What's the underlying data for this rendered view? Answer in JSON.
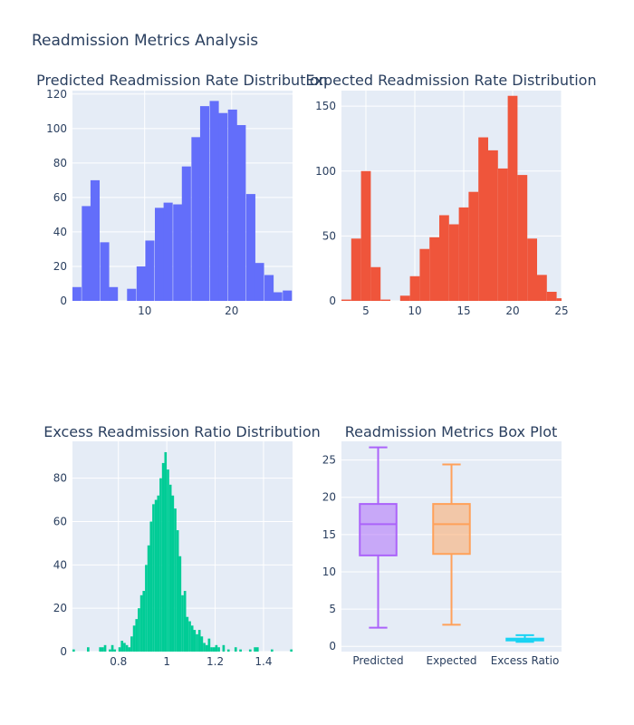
{
  "title": "Readmission Metrics Analysis",
  "colors": {
    "plot_bg": "#e5ecf6",
    "grid": "#ffffff",
    "text": "#2a3f5f",
    "predicted": "#636efa",
    "expected": "#ef553b",
    "excess": "#00cc96",
    "box_predicted": "#ab63fa",
    "box_expected": "#ffa15a",
    "box_excess": "#19d3f3"
  },
  "chart_data": [
    {
      "type": "bar",
      "subtitle": "Predicted Readmission Rate Distribution",
      "xlim": [
        1.7,
        27.0
      ],
      "ylim": [
        0,
        122
      ],
      "xticks": [
        10,
        20
      ],
      "yticks": [
        0,
        20,
        40,
        60,
        80,
        100,
        120
      ],
      "bin_width": 1.05,
      "bins": [
        {
          "x": 2.2,
          "y": 8
        },
        {
          "x": 3.3,
          "y": 55
        },
        {
          "x": 4.3,
          "y": 70
        },
        {
          "x": 5.4,
          "y": 34
        },
        {
          "x": 6.4,
          "y": 8
        },
        {
          "x": 8.5,
          "y": 7
        },
        {
          "x": 9.6,
          "y": 20
        },
        {
          "x": 10.6,
          "y": 35
        },
        {
          "x": 11.7,
          "y": 54
        },
        {
          "x": 12.7,
          "y": 57
        },
        {
          "x": 13.8,
          "y": 56
        },
        {
          "x": 14.8,
          "y": 78
        },
        {
          "x": 15.9,
          "y": 95
        },
        {
          "x": 16.9,
          "y": 113
        },
        {
          "x": 18.0,
          "y": 116
        },
        {
          "x": 19.0,
          "y": 109
        },
        {
          "x": 20.1,
          "y": 111
        },
        {
          "x": 21.1,
          "y": 102
        },
        {
          "x": 22.2,
          "y": 62
        },
        {
          "x": 23.2,
          "y": 22
        },
        {
          "x": 24.3,
          "y": 15
        },
        {
          "x": 25.3,
          "y": 5
        },
        {
          "x": 26.4,
          "y": 6
        }
      ]
    },
    {
      "type": "bar",
      "subtitle": "Expected Readmission Rate Distribution",
      "xlim": [
        2.5,
        25.0
      ],
      "ylim": [
        0,
        162
      ],
      "xticks": [
        5,
        10,
        15,
        20,
        25
      ],
      "yticks": [
        0,
        50,
        100,
        150
      ],
      "bin_width": 1.0,
      "bins": [
        {
          "x": 3.0,
          "y": 1
        },
        {
          "x": 4.0,
          "y": 48
        },
        {
          "x": 5.0,
          "y": 100
        },
        {
          "x": 6.0,
          "y": 26
        },
        {
          "x": 7.0,
          "y": 1
        },
        {
          "x": 9.0,
          "y": 4
        },
        {
          "x": 10.0,
          "y": 19
        },
        {
          "x": 11.0,
          "y": 40
        },
        {
          "x": 12.0,
          "y": 49
        },
        {
          "x": 13.0,
          "y": 66
        },
        {
          "x": 14.0,
          "y": 59
        },
        {
          "x": 15.0,
          "y": 72
        },
        {
          "x": 16.0,
          "y": 84
        },
        {
          "x": 17.0,
          "y": 126
        },
        {
          "x": 18.0,
          "y": 116
        },
        {
          "x": 19.0,
          "y": 102
        },
        {
          "x": 20.0,
          "y": 158
        },
        {
          "x": 21.0,
          "y": 97
        },
        {
          "x": 22.0,
          "y": 48
        },
        {
          "x": 23.0,
          "y": 20
        },
        {
          "x": 24.0,
          "y": 7
        },
        {
          "x": 25.0,
          "y": 2
        }
      ]
    },
    {
      "type": "bar",
      "subtitle": "Excess Readmission Ratio Distribution",
      "xlim": [
        0.61,
        1.52
      ],
      "ylim": [
        0,
        97
      ],
      "xticks": [
        0.8,
        1,
        1.2,
        1.4
      ],
      "yticks": [
        0,
        20,
        40,
        60,
        80
      ],
      "bin_width": 0.01,
      "bins": [
        {
          "x": 0.615,
          "y": 1
        },
        {
          "x": 0.675,
          "y": 2
        },
        {
          "x": 0.725,
          "y": 2
        },
        {
          "x": 0.735,
          "y": 2
        },
        {
          "x": 0.745,
          "y": 3
        },
        {
          "x": 0.765,
          "y": 1
        },
        {
          "x": 0.775,
          "y": 3
        },
        {
          "x": 0.785,
          "y": 1
        },
        {
          "x": 0.805,
          "y": 2
        },
        {
          "x": 0.815,
          "y": 5
        },
        {
          "x": 0.825,
          "y": 4
        },
        {
          "x": 0.835,
          "y": 3
        },
        {
          "x": 0.845,
          "y": 2
        },
        {
          "x": 0.855,
          "y": 7
        },
        {
          "x": 0.865,
          "y": 12
        },
        {
          "x": 0.875,
          "y": 15
        },
        {
          "x": 0.885,
          "y": 20
        },
        {
          "x": 0.895,
          "y": 26
        },
        {
          "x": 0.905,
          "y": 28
        },
        {
          "x": 0.915,
          "y": 40
        },
        {
          "x": 0.925,
          "y": 49
        },
        {
          "x": 0.935,
          "y": 60
        },
        {
          "x": 0.945,
          "y": 68
        },
        {
          "x": 0.955,
          "y": 70
        },
        {
          "x": 0.965,
          "y": 72
        },
        {
          "x": 0.975,
          "y": 80
        },
        {
          "x": 0.985,
          "y": 87
        },
        {
          "x": 0.995,
          "y": 92
        },
        {
          "x": 1.005,
          "y": 84
        },
        {
          "x": 1.015,
          "y": 77
        },
        {
          "x": 1.025,
          "y": 72
        },
        {
          "x": 1.035,
          "y": 66
        },
        {
          "x": 1.045,
          "y": 56
        },
        {
          "x": 1.055,
          "y": 44
        },
        {
          "x": 1.065,
          "y": 26
        },
        {
          "x": 1.075,
          "y": 28
        },
        {
          "x": 1.085,
          "y": 16
        },
        {
          "x": 1.095,
          "y": 14
        },
        {
          "x": 1.105,
          "y": 12
        },
        {
          "x": 1.115,
          "y": 10
        },
        {
          "x": 1.125,
          "y": 8
        },
        {
          "x": 1.135,
          "y": 10
        },
        {
          "x": 1.145,
          "y": 7
        },
        {
          "x": 1.155,
          "y": 4
        },
        {
          "x": 1.165,
          "y": 3
        },
        {
          "x": 1.175,
          "y": 6
        },
        {
          "x": 1.185,
          "y": 2
        },
        {
          "x": 1.195,
          "y": 2
        },
        {
          "x": 1.205,
          "y": 3
        },
        {
          "x": 1.215,
          "y": 2
        },
        {
          "x": 1.235,
          "y": 3
        },
        {
          "x": 1.255,
          "y": 1
        },
        {
          "x": 1.285,
          "y": 2
        },
        {
          "x": 1.305,
          "y": 1
        },
        {
          "x": 1.345,
          "y": 1
        },
        {
          "x": 1.365,
          "y": 2
        },
        {
          "x": 1.375,
          "y": 2
        },
        {
          "x": 1.435,
          "y": 1
        },
        {
          "x": 1.515,
          "y": 1
        }
      ]
    },
    {
      "type": "box",
      "subtitle": "Readmission Metrics Box Plot",
      "ylim": [
        -0.7,
        27.5
      ],
      "yticks": [
        0,
        5,
        10,
        15,
        20,
        25
      ],
      "categories": [
        "Predicted",
        "Expected",
        "Excess Ratio"
      ],
      "boxes": [
        {
          "name": "Predicted",
          "min": 2.5,
          "q1": 12.2,
          "median": 16.4,
          "q3": 19.1,
          "max": 26.7
        },
        {
          "name": "Expected",
          "min": 2.9,
          "q1": 12.4,
          "median": 16.4,
          "q3": 19.1,
          "max": 24.4
        },
        {
          "name": "Excess Ratio",
          "min": 0.6,
          "q1": 0.95,
          "median": 1.0,
          "q3": 1.04,
          "max": 1.5
        }
      ]
    }
  ]
}
